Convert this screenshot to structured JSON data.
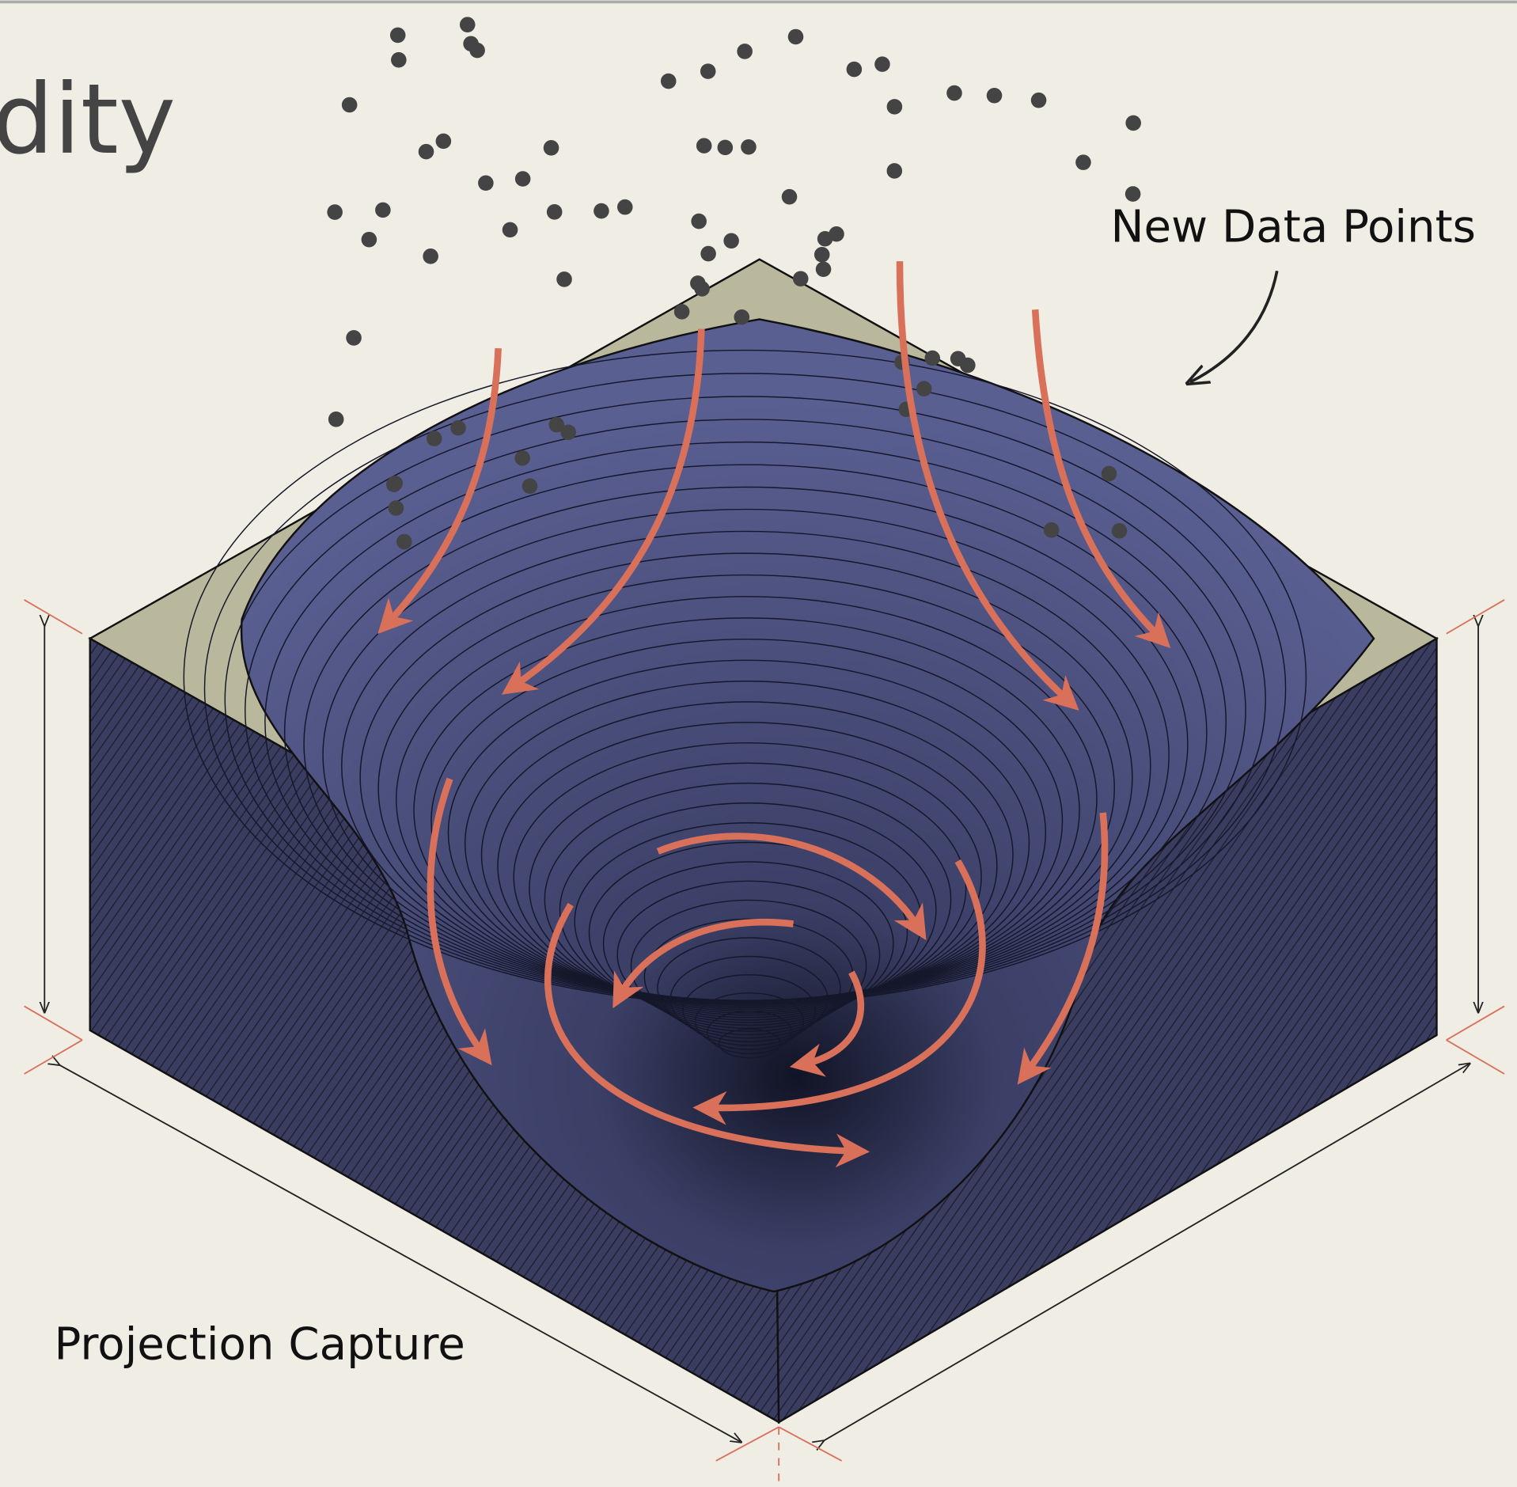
{
  "header": {
    "title": "dity"
  },
  "labels": {
    "new_data_points": "New Data Points",
    "projection_capture": "Projection Capture"
  }
}
